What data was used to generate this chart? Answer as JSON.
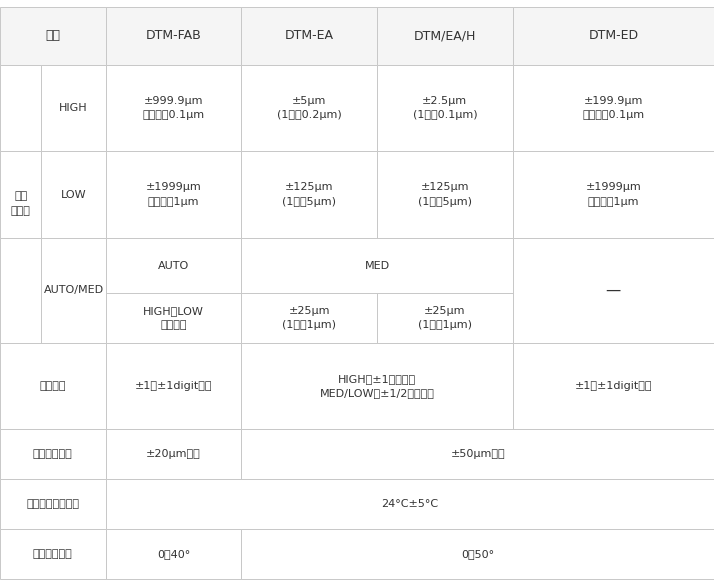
{
  "bg_color": "#ffffff",
  "border_color": "#c8c8c8",
  "header_bg": "#f5f5f5",
  "text_color": "#333333",
  "fig_width": 7.14,
  "fig_height": 5.86,
  "header_fontsize": 9.0,
  "cell_fontsize": 8.0,
  "header_labels": [
    "型号",
    "DTM-FAB",
    "DTM-EA",
    "DTM/EA/H",
    "DTM-ED"
  ],
  "high_sub": "HIGH",
  "high_fab": "±999.9μm\n最小读值0.1μm",
  "high_ea": "±5μm\n(1目量0.2μm)",
  "high_eah": "±2.5μm\n(1目量0.1μm)",
  "high_ed": "±199.9μm\n最小读值0.1μm",
  "low_sub": "LOW",
  "low_fab": "±1999μm\n最小读值1μm",
  "low_ea": "±125μm\n(1目量5μm)",
  "low_eah": "±125μm\n(1目量5μm)",
  "low_ed": "±1999μm\n最小读值1μm",
  "auto_sub": "AUTO/MED",
  "auto_fab_top": "AUTO",
  "auto_fab_bot": "HIGH、LOW\n自动切换",
  "auto_med_top": "MED",
  "auto_ea_bot": "±25μm\n(1目量1μm)",
  "auto_eah_bot": "±25μm\n(1目量1μm)",
  "auto_ed": "—",
  "main_row_label": "最小\n解析值",
  "disp_label": "显示误差",
  "disp_fab": "±1％±1digit以内",
  "disp_ea_eah": "HIGH：±1目量以内\nMED/LOW：±1/2目量以内",
  "disp_ed": "±1％±1digit以内",
  "zero_label": "归零调整范围",
  "zero_fab": "±20μm以上",
  "zero_ea_ed": "±50μm以上",
  "tempg_label": "精度保证温度范围",
  "tempg_all": "24°C±5°C",
  "usetemp_label": "使用温度范围",
  "usetemp_fab": "0～40°",
  "usetemp_ea_ed": "0～50°"
}
